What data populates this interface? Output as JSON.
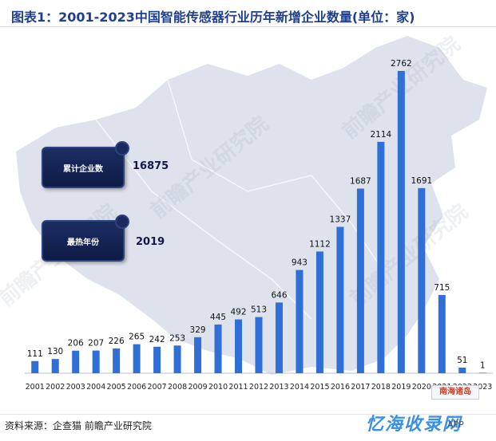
{
  "title": "图表1：2001-2023中国智能传感器行业历年新增企业数量(单位：家)",
  "stats": [
    {
      "label": "累计企业数",
      "value": "16875"
    },
    {
      "label": "最热年份",
      "value": "2019"
    }
  ],
  "map_label": "南海诸岛",
  "source": "资料来源：企查猫 前瞻产业研究院",
  "brand": "忆海收录网",
  "brand_app": "APP",
  "watermark_text": "前瞻产业研究院",
  "colors": {
    "bar": "#2f6fd6",
    "title": "#1f3f8f",
    "map": "#d9dee8",
    "scroll": "#0f1b46"
  },
  "chart_data": {
    "type": "bar",
    "title": "图表1：2001-2023中国智能传感器行业历年新增企业数量(单位：家)",
    "xlabel": "",
    "ylabel": "",
    "categories": [
      "2001",
      "2002",
      "2003",
      "2004",
      "2005",
      "2006",
      "2007",
      "2008",
      "2009",
      "2010",
      "2011",
      "2012",
      "2013",
      "2014",
      "2015",
      "2016",
      "2017",
      "2018",
      "2019",
      "2020",
      "2021",
      "2022",
      "2023"
    ],
    "values": [
      111,
      130,
      206,
      207,
      226,
      265,
      242,
      253,
      329,
      445,
      492,
      513,
      646,
      943,
      1112,
      1337,
      1687,
      2114,
      2762,
      1691,
      715,
      51,
      1
    ],
    "ylim": [
      0,
      2900
    ],
    "grid": false,
    "legend": "none"
  }
}
